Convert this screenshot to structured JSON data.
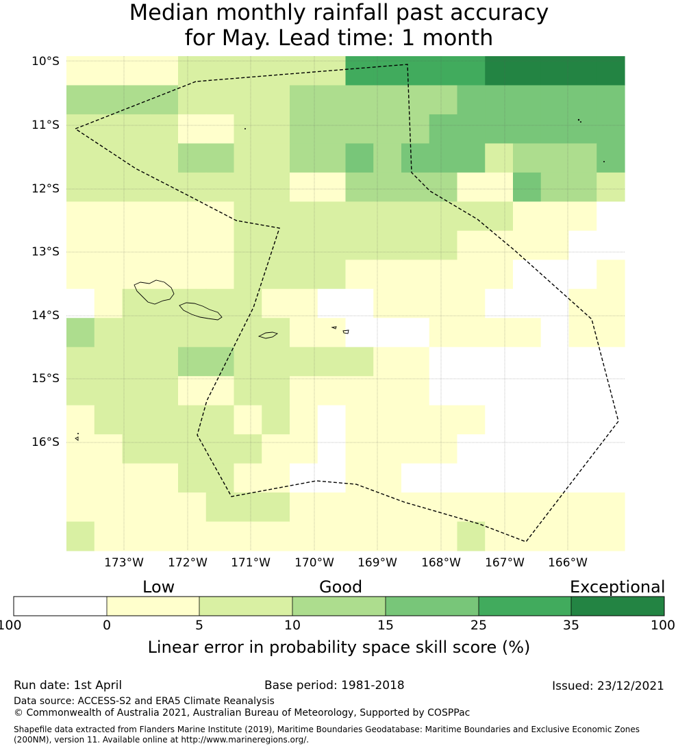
{
  "title_line1": "Median monthly rainfall past accuracy",
  "title_line2": "for May. Lead time: 1 month",
  "lat_labels": [
    "10°S",
    "11°S",
    "12°S",
    "13°S",
    "14°S",
    "15°S",
    "16°S"
  ],
  "lon_labels": [
    "173°W",
    "172°W",
    "171°W",
    "170°W",
    "169°W",
    "168°W",
    "167°W",
    "166°W"
  ],
  "colors": {
    "white": "#ffffff",
    "c0_5": "#ffffcc",
    "c5_10": "#d9f0a3",
    "c10_15": "#addd8e",
    "c15_25": "#78c679",
    "c25_35": "#41ab5d",
    "c35_100": "#238443",
    "boundary": "#000000"
  },
  "grid_rows": [
    "11112222225555566666",
    "33332222333333444444",
    "22221122333334444444",
    "22223322334344423334",
    "22222222113333114332",
    "11111122222222221110",
    "11111122222222111100",
    "11111122221111110001",
    "01222221100111100011",
    "32222222110001111011",
    "22223322222110000000",
    "22221122111110000000",
    "12222212101111100000",
    "11222221101111000000",
    "11112211001100000000",
    "11111222111111111111",
    "21111111111111211111"
  ],
  "colorbar": {
    "categories": [
      "Low",
      "Good",
      "Exceptional"
    ],
    "ticks": [
      "-100",
      "0",
      "5",
      "10",
      "15",
      "25",
      "35",
      "100"
    ],
    "label": "Linear error in probability space skill score (%)"
  },
  "footer": {
    "run_date": "Run date: 1st April",
    "base_period": "Base period: 1981-2018",
    "issued": "Issued: 23/12/2021",
    "data_source": "Data source: ACCESS-S2 and ERA5 Climate Reanalysis",
    "copyright": "© Commonwealth of Australia 2021, Australian Bureau of Meteorology, Supported by COSPPac",
    "shapefile_line1": "Shapefile data extracted from Flanders Marine Institute (2019), Maritime Boundaries Geodatabase: Maritime Boundaries and Exclusive Economic Zones",
    "shapefile_line2": "(200NM), version 11. Available online at http://www.marineregions.org/."
  }
}
